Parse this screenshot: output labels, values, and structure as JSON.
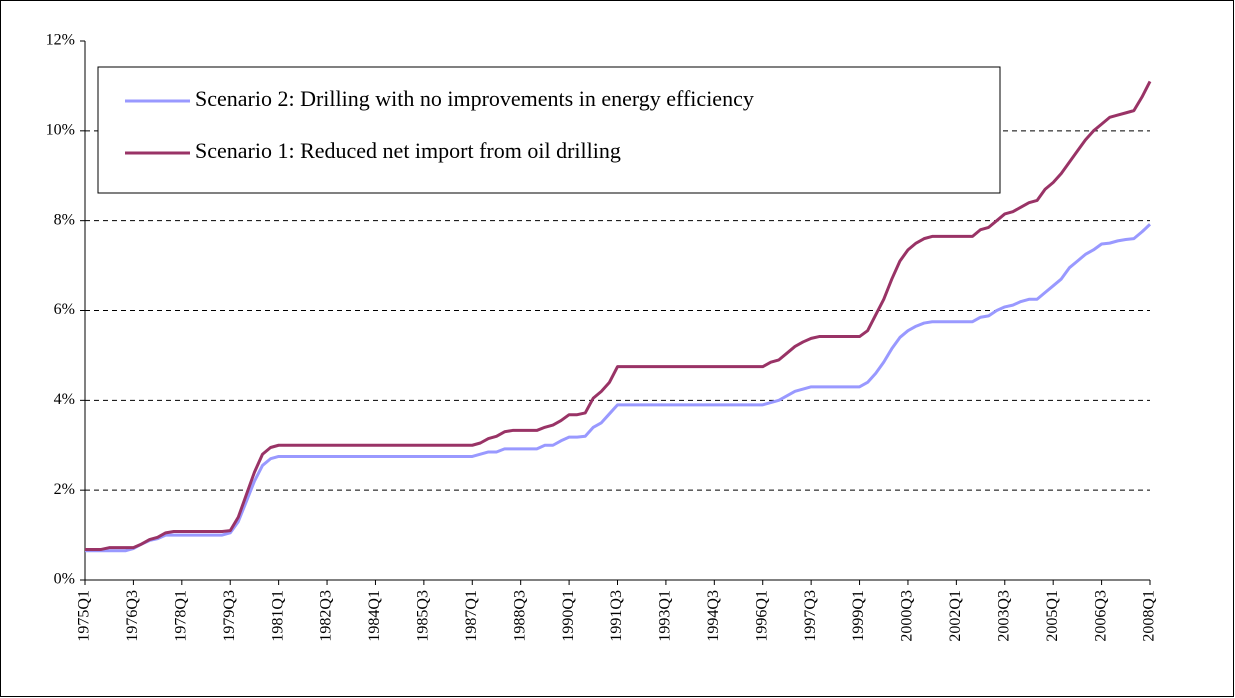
{
  "chart_data": {
    "type": "line",
    "categories": [
      "1975Q1",
      null,
      null,
      null,
      null,
      null,
      "1976Q3",
      null,
      null,
      null,
      null,
      null,
      "1978Q1",
      null,
      null,
      null,
      null,
      null,
      "1979Q3",
      null,
      null,
      null,
      null,
      null,
      "1981Q1",
      null,
      null,
      null,
      null,
      null,
      "1982Q3",
      null,
      null,
      null,
      null,
      null,
      "1984Q1",
      null,
      null,
      null,
      null,
      null,
      "1985Q3",
      null,
      null,
      null,
      null,
      null,
      "1987Q1",
      null,
      null,
      null,
      null,
      null,
      "1988Q3",
      null,
      null,
      null,
      null,
      null,
      "1990Q1",
      null,
      null,
      null,
      null,
      null,
      "1991Q3",
      null,
      null,
      null,
      null,
      null,
      "1993Q1",
      null,
      null,
      null,
      null,
      null,
      "1994Q3",
      null,
      null,
      null,
      null,
      null,
      "1996Q1",
      null,
      null,
      null,
      null,
      null,
      "1997Q3",
      null,
      null,
      null,
      null,
      null,
      "1999Q1",
      null,
      null,
      null,
      null,
      null,
      "2000Q3",
      null,
      null,
      null,
      null,
      null,
      "2002Q1",
      null,
      null,
      null,
      null,
      null,
      "2003Q3",
      null,
      null,
      null,
      null,
      null,
      "2005Q1",
      null,
      null,
      null,
      null,
      null,
      "2006Q3",
      null,
      null,
      null,
      null,
      null,
      "2008Q1"
    ],
    "series": [
      {
        "name": "Scenario 2: Drilling with no improvements in energy efficiency",
        "color": "#9999ff",
        "values": [
          0.65,
          0.65,
          0.65,
          0.65,
          0.65,
          0.65,
          0.7,
          0.8,
          0.88,
          0.92,
          1,
          1,
          1,
          1,
          1,
          1,
          1,
          1,
          1.05,
          1.3,
          1.75,
          2.2,
          2.55,
          2.7,
          2.75,
          2.75,
          2.75,
          2.75,
          2.75,
          2.75,
          2.75,
          2.75,
          2.75,
          2.75,
          2.75,
          2.75,
          2.75,
          2.75,
          2.75,
          2.75,
          2.75,
          2.75,
          2.75,
          2.75,
          2.75,
          2.75,
          2.75,
          2.75,
          2.75,
          2.8,
          2.85,
          2.85,
          2.92,
          2.92,
          2.92,
          2.92,
          2.92,
          3,
          3,
          3.1,
          3.18,
          3.18,
          3.2,
          3.4,
          3.5,
          3.7,
          3.9,
          3.9,
          3.9,
          3.9,
          3.9,
          3.9,
          3.9,
          3.9,
          3.9,
          3.9,
          3.9,
          3.9,
          3.9,
          3.9,
          3.9,
          3.9,
          3.9,
          3.9,
          3.9,
          3.95,
          4,
          4.1,
          4.2,
          4.25,
          4.3,
          4.3,
          4.3,
          4.3,
          4.3,
          4.3,
          4.3,
          4.4,
          4.6,
          4.85,
          5.15,
          5.4,
          5.55,
          5.65,
          5.72,
          5.75,
          5.75,
          5.75,
          5.75,
          5.75,
          5.75,
          5.85,
          5.88,
          6,
          6.08,
          6.12,
          6.2,
          6.25,
          6.25,
          6.4,
          6.55,
          6.7,
          6.95,
          7.1,
          7.25,
          7.35,
          7.48,
          7.5,
          7.55,
          7.58,
          7.6,
          7.75,
          7.92
        ]
      },
      {
        "name": "Scenario 1: Reduced net import from oil drilling",
        "color": "#993366",
        "values": [
          0.68,
          0.68,
          0.68,
          0.72,
          0.72,
          0.72,
          0.72,
          0.8,
          0.9,
          0.95,
          1.05,
          1.08,
          1.08,
          1.08,
          1.08,
          1.08,
          1.08,
          1.08,
          1.1,
          1.4,
          1.9,
          2.4,
          2.8,
          2.95,
          3,
          3,
          3,
          3,
          3,
          3,
          3,
          3,
          3,
          3,
          3,
          3,
          3,
          3,
          3,
          3,
          3,
          3,
          3,
          3,
          3,
          3,
          3,
          3,
          3,
          3.05,
          3.15,
          3.2,
          3.3,
          3.33,
          3.33,
          3.33,
          3.33,
          3.4,
          3.45,
          3.55,
          3.68,
          3.68,
          3.72,
          4.05,
          4.2,
          4.4,
          4.75,
          4.75,
          4.75,
          4.75,
          4.75,
          4.75,
          4.75,
          4.75,
          4.75,
          4.75,
          4.75,
          4.75,
          4.75,
          4.75,
          4.75,
          4.75,
          4.75,
          4.75,
          4.75,
          4.85,
          4.9,
          5.05,
          5.2,
          5.3,
          5.38,
          5.42,
          5.42,
          5.42,
          5.42,
          5.42,
          5.42,
          5.55,
          5.9,
          6.25,
          6.7,
          7.1,
          7.35,
          7.5,
          7.6,
          7.65,
          7.65,
          7.65,
          7.65,
          7.65,
          7.65,
          7.8,
          7.85,
          8,
          8.15,
          8.2,
          8.3,
          8.4,
          8.45,
          8.7,
          8.85,
          9.05,
          9.3,
          9.55,
          9.8,
          10,
          10.15,
          10.3,
          10.35,
          10.4,
          10.45,
          10.75,
          11.1
        ]
      }
    ],
    "ylim": [
      0,
      12
    ],
    "yticks": [
      {
        "value": 0,
        "label": "0%"
      },
      {
        "value": 2,
        "label": "2%"
      },
      {
        "value": 4,
        "label": "4%"
      },
      {
        "value": 6,
        "label": "6%"
      },
      {
        "value": 8,
        "label": "8%"
      },
      {
        "value": 10,
        "label": "10%"
      },
      {
        "value": 12,
        "label": "12%"
      }
    ],
    "grid": true
  }
}
